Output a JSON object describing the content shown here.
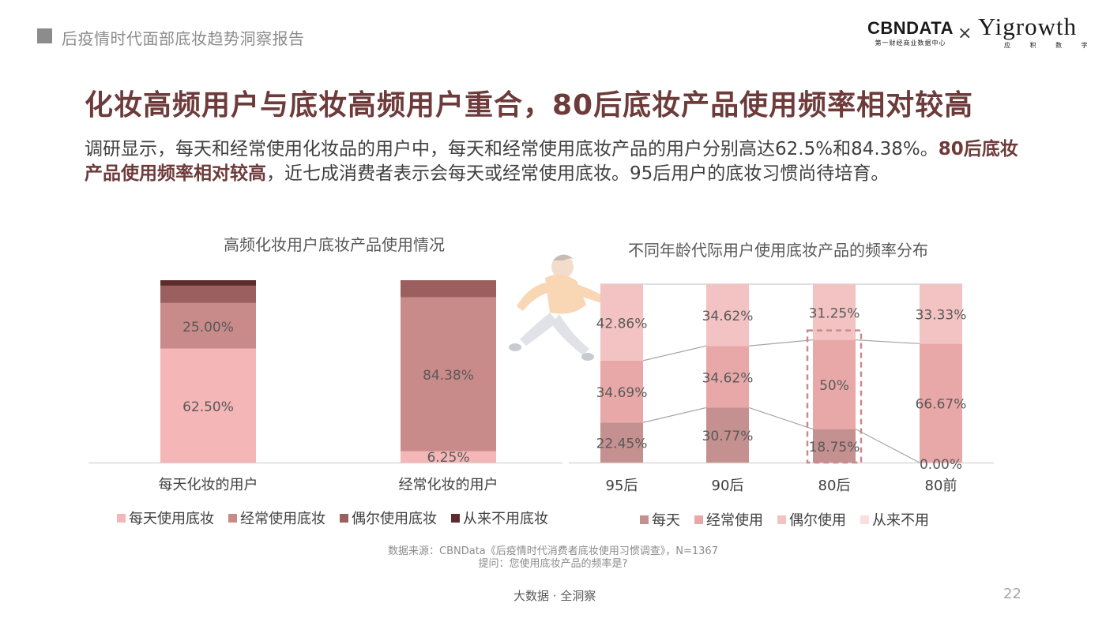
{
  "header": {
    "title": "后疫情时代面部底妆趋势洞察报告"
  },
  "logos": {
    "cbn_main": "CBNDATA",
    "cbn_sub": "第一财经商业数据中心",
    "times": "×",
    "yi_main": "Yigrowth",
    "yi_sub": "应 积 数 字"
  },
  "title": "化妆高频用户与底妆高频用户重合，80后底妆产品使用频率相对较高",
  "description": {
    "part1": "调研显示，每天和经常使用化妆品的用户中，每天和经常使用底妆产品的用户分别高达62.5%和84.38%。",
    "bold": "80后底妆产品使用频率相对较高",
    "part2": "，近七成消费者表示会每天或经常使用底妆。95后用户的底妆习惯尚待培育。"
  },
  "colors": {
    "daily": "#f4b6b6",
    "often": "#c98a8a",
    "occasional": "#9c5f5f",
    "never": "#5e2b2b",
    "r_daily": "#c49090",
    "r_often": "#e8a8a8",
    "r_occasional": "#f3c3c3",
    "r_never": "#fbdede"
  },
  "chart_data": [
    {
      "type": "bar",
      "stacked": true,
      "title": "高频化妆用户底妆产品使用情况",
      "categories": [
        "每天化妆的用户",
        "经常化妆的用户"
      ],
      "series": [
        {
          "name": "每天使用底妆",
          "values": [
            62.5,
            6.25
          ],
          "labels": [
            "62.50%",
            "6.25%"
          ]
        },
        {
          "name": "经常使用底妆",
          "values": [
            25.0,
            84.38
          ],
          "labels": [
            "25.00%",
            "84.38%"
          ]
        },
        {
          "name": "偶尔使用底妆",
          "values": [
            9.5,
            9.37
          ],
          "labels": [
            "",
            ""
          ]
        },
        {
          "name": "从来不用底妆",
          "values": [
            3.0,
            0
          ],
          "labels": [
            "",
            ""
          ]
        }
      ],
      "ylim": [
        0,
        100
      ],
      "legend": "bottom"
    },
    {
      "type": "bar",
      "stacked": true,
      "title": "不同年龄代际用户使用底妆产品的频率分布",
      "categories": [
        "95后",
        "90后",
        "80后",
        "80前"
      ],
      "series": [
        {
          "name": "每天",
          "values": [
            22.45,
            30.77,
            18.75,
            0
          ],
          "labels": [
            "22.45%",
            "30.77%",
            "18.75%",
            "0.00%"
          ]
        },
        {
          "name": "经常使用",
          "values": [
            34.69,
            34.62,
            50,
            66.67
          ],
          "labels": [
            "34.69%",
            "34.62%",
            "50%",
            "66.67%"
          ]
        },
        {
          "name": "偶尔使用",
          "values": [
            42.86,
            34.62,
            31.25,
            33.33
          ],
          "labels": [
            "42.86%",
            "34.62%",
            "31.25%",
            "33.33%"
          ]
        },
        {
          "name": "从来不用",
          "values": [
            0,
            0,
            0,
            0
          ],
          "labels": [
            "",
            "",
            "",
            ""
          ]
        }
      ],
      "ylim": [
        0,
        100
      ],
      "highlight_category": "80后",
      "legend": "bottom"
    }
  ],
  "source": {
    "line1": "数据来源：CBNData《后疫情时代消费者底妆使用习惯调查》，N=1367",
    "line2": "提问：您使用底妆产品的频率是?"
  },
  "footer": {
    "text": "大数据 · 全洞察",
    "page": "22"
  }
}
